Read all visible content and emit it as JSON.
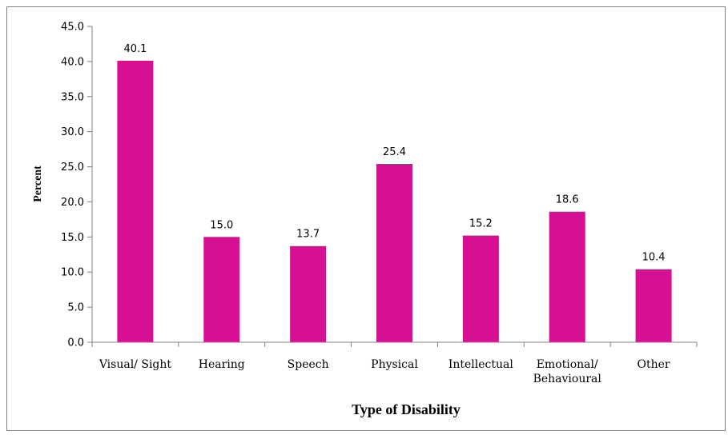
{
  "chart_data": {
    "type": "bar",
    "categories": [
      "Visual/ Sight",
      "Hearing",
      "Speech",
      "Physical",
      "Intellectual",
      "Emotional/ Behavioural",
      "Other"
    ],
    "category_lines": [
      [
        "Visual/ Sight"
      ],
      [
        "Hearing"
      ],
      [
        "Speech"
      ],
      [
        "Physical"
      ],
      [
        "Intellectual"
      ],
      [
        "Emotional/",
        "Behavioural"
      ],
      [
        "Other"
      ]
    ],
    "values": [
      40.1,
      15.0,
      13.7,
      25.4,
      15.2,
      18.6,
      10.4
    ],
    "value_labels": [
      "40.1",
      "15.0",
      "13.7",
      "25.4",
      "15.2",
      "18.6",
      "10.4"
    ],
    "ylabel": "Percent",
    "xlabel": "Type of Disability",
    "ylim": [
      0,
      45
    ],
    "yticks": [
      "0.0",
      "5.0",
      "10.0",
      "15.0",
      "20.0",
      "25.0",
      "30.0",
      "35.0",
      "40.0",
      "45.0"
    ],
    "grid": false,
    "legend": "none",
    "bar_color": "#D70F93"
  }
}
